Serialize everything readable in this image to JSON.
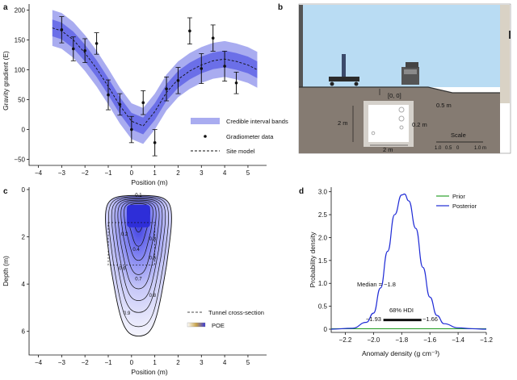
{
  "panels": {
    "a": {
      "letter": "a",
      "xlabel": "Position (m)",
      "ylabel": "Gravity gradient (E)",
      "xlim": [
        -4.4,
        5.8
      ],
      "ylim": [
        -60,
        210
      ],
      "xticks": [
        -4,
        -3,
        -2,
        -1,
        0,
        1,
        2,
        3,
        4,
        5
      ],
      "yticks": [
        -50,
        0,
        50,
        100,
        150,
        200
      ],
      "legend": {
        "bands": "Credible interval bands",
        "data": "Gradiometer data",
        "model": "Site model"
      },
      "colors": {
        "band_outer": "#a9acf0",
        "band_inner": "#6b6fe8",
        "data": "#111111"
      }
    },
    "b": {
      "letter": "b",
      "origin_label": "[0, 0]",
      "dim_0_5": "0.5 m",
      "dim_2m_v": "2 m",
      "dim_2m_h": "2 m",
      "dim_0_2": "0.2 m",
      "scale_title": "Scale",
      "scale_ticks": [
        "1.0",
        "0.5",
        "0",
        "1.0 m"
      ],
      "colors": {
        "sky": "#b9dcf3",
        "ground": "#857b72",
        "tunnel": "#ffffff"
      }
    },
    "c": {
      "letter": "c",
      "xlabel": "Position (m)",
      "ylabel": "Depth (m)",
      "xticks": [
        -4,
        -3,
        -2,
        -1,
        0,
        1,
        2,
        3,
        4,
        5
      ],
      "yticks": [
        0,
        2,
        4,
        6
      ],
      "contour_labels": [
        "0.1",
        "0.2",
        "0.3",
        "0.4",
        "0.5",
        "0.6",
        "0.7",
        "0.8",
        "0.9"
      ],
      "legend": {
        "tunnel": "Tunnel cross-section",
        "poe": "POE"
      }
    },
    "d": {
      "letter": "d",
      "xlabel": "Anomaly density (g cm⁻³)",
      "ylabel": "Probability density",
      "legend": {
        "prior": "Prior",
        "posterior": "Posterior"
      },
      "median_label": "Median = −1.8",
      "hdi_title": "68% HDI",
      "hdi_low": "−1.93",
      "hdi_high": "−1.66",
      "xticks": [
        "−2.2",
        "−2.0",
        "−1.8",
        "−1.6",
        "−1.4",
        "−1.2"
      ],
      "yticks": [
        "0",
        "0.5",
        "1.0",
        "1.5",
        "2.0",
        "2.5",
        "3.0"
      ],
      "colors": {
        "prior": "#2ca02c",
        "posterior": "#1f2bd6"
      }
    }
  },
  "chart_data": [
    {
      "type": "scatter",
      "panel": "a",
      "xlabel": "Position (m)",
      "ylabel": "Gravity gradient (E)",
      "xlim": [
        -4.4,
        5.8
      ],
      "ylim": [
        -60,
        210
      ],
      "series": [
        {
          "name": "Gradiometer data",
          "points": [
            {
              "x": -3.0,
              "y": 167,
              "err": 22
            },
            {
              "x": -2.5,
              "y": 135,
              "err": 20
            },
            {
              "x": -2.0,
              "y": 132,
              "err": 20
            },
            {
              "x": -1.5,
              "y": 144,
              "err": 18
            },
            {
              "x": -1.0,
              "y": 58,
              "err": 25
            },
            {
              "x": -0.5,
              "y": 42,
              "err": 18
            },
            {
              "x": 0.0,
              "y": 0,
              "err": 22
            },
            {
              "x": 0.5,
              "y": 45,
              "err": 20
            },
            {
              "x": 1.0,
              "y": -22,
              "err": 22
            },
            {
              "x": 1.5,
              "y": 68,
              "err": 20
            },
            {
              "x": 2.0,
              "y": 82,
              "err": 22
            },
            {
              "x": 2.5,
              "y": 165,
              "err": 22
            },
            {
              "x": 3.0,
              "y": 102,
              "err": 25
            },
            {
              "x": 3.5,
              "y": 153,
              "err": 22
            },
            {
              "x": 4.0,
              "y": 106,
              "err": 25
            },
            {
              "x": 4.5,
              "y": 78,
              "err": 18
            }
          ]
        },
        {
          "name": "Site model",
          "x": [
            -3.4,
            -3,
            -2.5,
            -2,
            -1.5,
            -1,
            -0.5,
            0,
            0.5,
            1,
            1.5,
            2,
            2.5,
            3,
            3.5,
            4,
            4.5,
            5,
            5.4
          ],
          "y": [
            170,
            165,
            150,
            128,
            102,
            72,
            40,
            14,
            6,
            30,
            62,
            84,
            98,
            108,
            115,
            118,
            114,
            108,
            100
          ]
        }
      ],
      "bands": {
        "inner_halfwidth": 14,
        "outer_halfwidth": 30
      }
    },
    {
      "type": "line",
      "panel": "d",
      "xlabel": "Anomaly density (g cm⁻³)",
      "ylabel": "Probability density",
      "xlim": [
        -2.3,
        -1.2
      ],
      "ylim": [
        0,
        3.1
      ],
      "series": [
        {
          "name": "Prior",
          "x": [
            -2.3,
            -1.2
          ],
          "y": [
            0.01,
            0.01
          ]
        },
        {
          "name": "Posterior",
          "x": [
            -2.3,
            -2.15,
            -2.05,
            -2.0,
            -1.95,
            -1.9,
            -1.85,
            -1.8,
            -1.78,
            -1.75,
            -1.7,
            -1.65,
            -1.6,
            -1.55,
            -1.5,
            -1.4,
            -1.3,
            -1.2
          ],
          "y": [
            0.0,
            0.02,
            0.15,
            0.35,
            0.9,
            1.7,
            2.5,
            2.93,
            2.95,
            2.8,
            2.2,
            1.35,
            0.7,
            0.3,
            0.12,
            0.03,
            0.01,
            0.0
          ]
        }
      ],
      "median": -1.8,
      "hdi": [
        -1.93,
        -1.66
      ]
    }
  ]
}
